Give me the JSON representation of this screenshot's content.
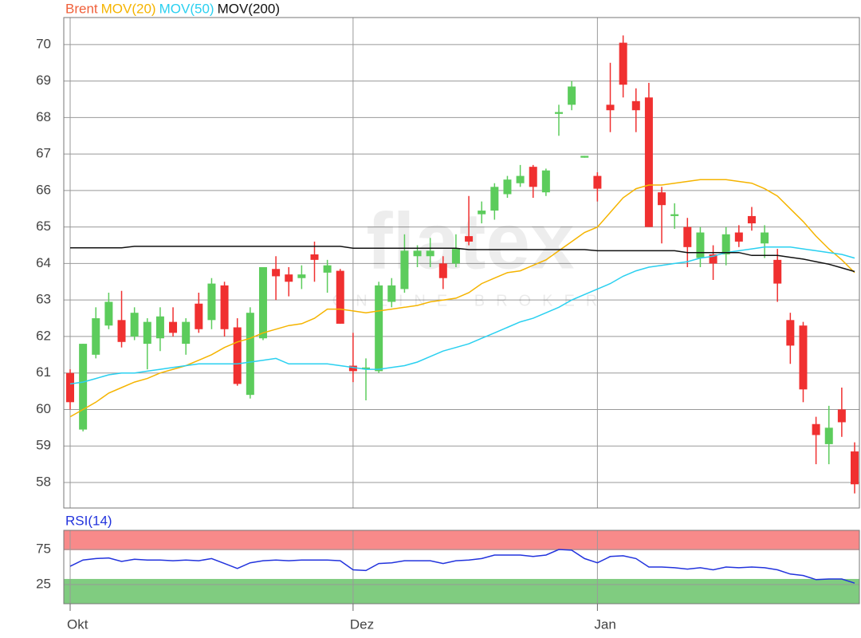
{
  "chart_data": [
    {
      "type": "candlestick",
      "watermark": "flatex",
      "watermark_subtitle": "ONLINE BROKER",
      "categories": [
        "Okt",
        null,
        null,
        null,
        null,
        null,
        null,
        null,
        null,
        null,
        null,
        null,
        null,
        null,
        null,
        null,
        null,
        null,
        null,
        null,
        null,
        null,
        "Dez",
        null,
        null,
        null,
        null,
        null,
        null,
        null,
        null,
        null,
        null,
        null,
        null,
        null,
        null,
        null,
        null,
        null,
        null,
        "Jan",
        null,
        null,
        null,
        null,
        null,
        null,
        null,
        null,
        null,
        null,
        null,
        null,
        null,
        null,
        null,
        null,
        null,
        null,
        null,
        null
      ],
      "ylim": [
        57.3,
        70.74
      ],
      "yticks": [
        58,
        59,
        60,
        61,
        62,
        63,
        64,
        65,
        66,
        67,
        68,
        69,
        70
      ],
      "grid": true,
      "up_color": "#5ccc5c",
      "down_color": "#f03030",
      "series": [
        {
          "name": "Brent",
          "type": "candlestick",
          "color": "#f0603a",
          "open": [
            61.0,
            59.45,
            61.5,
            62.3,
            62.45,
            62.0,
            61.8,
            61.95,
            62.4,
            61.8,
            62.9,
            62.45,
            63.4,
            62.25,
            60.4,
            61.95,
            63.85,
            63.7,
            63.6,
            64.25,
            63.75,
            63.8,
            61.2,
            61.1,
            61.05,
            62.95,
            63.3,
            64.2,
            64.2,
            64.0,
            64.0,
            64.75,
            65.35,
            65.45,
            65.9,
            66.2,
            66.65,
            65.95,
            68.1,
            68.35,
            66.9,
            66.4,
            68.35,
            70.05,
            68.45,
            68.55,
            65.95,
            65.3,
            65.0,
            64.15,
            64.25,
            64.25,
            64.85,
            65.3,
            64.55,
            64.1,
            62.45,
            62.3,
            59.6,
            59.05,
            60.0,
            58.85
          ],
          "high": [
            61.1,
            61.8,
            62.8,
            63.2,
            63.25,
            62.8,
            62.5,
            62.8,
            62.8,
            62.5,
            63.2,
            63.6,
            63.5,
            62.5,
            62.8,
            63.9,
            64.2,
            63.9,
            63.95,
            64.6,
            64.1,
            63.85,
            62.1,
            61.4,
            63.5,
            63.6,
            64.8,
            64.5,
            64.7,
            64.2,
            64.8,
            65.85,
            65.7,
            66.2,
            66.4,
            66.7,
            66.7,
            66.6,
            68.35,
            69.0,
            66.95,
            66.5,
            69.5,
            70.25,
            68.8,
            68.95,
            66.1,
            65.65,
            65.25,
            65.0,
            64.5,
            65.0,
            65.05,
            65.55,
            65.05,
            64.4,
            62.65,
            62.4,
            59.8,
            60.1,
            60.6,
            59.1
          ],
          "low": [
            60.0,
            59.4,
            61.4,
            62.2,
            61.7,
            61.9,
            61.1,
            61.6,
            62.0,
            61.5,
            62.1,
            62.2,
            62.0,
            60.65,
            60.3,
            61.9,
            63.0,
            63.1,
            63.3,
            63.5,
            63.2,
            62.35,
            60.75,
            60.25,
            61.0,
            62.8,
            63.2,
            63.9,
            63.9,
            63.3,
            63.9,
            64.5,
            65.1,
            65.2,
            65.8,
            66.1,
            65.8,
            65.85,
            67.5,
            68.2,
            66.9,
            65.7,
            67.6,
            68.55,
            67.6,
            65.0,
            64.55,
            64.95,
            63.9,
            63.9,
            63.55,
            63.95,
            64.45,
            64.9,
            64.15,
            62.95,
            61.25,
            60.2,
            58.5,
            58.5,
            59.25,
            57.7
          ],
          "close": [
            60.2,
            61.8,
            62.5,
            62.95,
            61.85,
            62.65,
            62.4,
            62.55,
            62.1,
            62.4,
            62.2,
            63.45,
            62.2,
            60.7,
            62.65,
            63.9,
            63.65,
            63.5,
            63.7,
            64.1,
            63.95,
            62.35,
            61.05,
            61.15,
            63.4,
            63.4,
            64.35,
            64.35,
            64.35,
            63.6,
            64.4,
            64.6,
            65.45,
            66.1,
            66.3,
            66.4,
            66.1,
            66.55,
            68.15,
            68.85,
            66.95,
            66.05,
            68.2,
            68.9,
            68.2,
            65.0,
            65.6,
            65.35,
            64.45,
            64.85,
            64.0,
            64.8,
            64.6,
            65.1,
            64.85,
            63.45,
            61.75,
            60.55,
            59.3,
            59.5,
            59.65,
            57.95
          ]
        },
        {
          "name": "MOV(20)",
          "type": "line",
          "color": "#f5b400",
          "values": [
            59.8,
            60.0,
            60.2,
            60.45,
            60.6,
            60.75,
            60.85,
            61.0,
            61.1,
            61.2,
            61.35,
            61.5,
            61.7,
            61.85,
            61.95,
            62.1,
            62.2,
            62.3,
            62.35,
            62.5,
            62.75,
            62.75,
            62.7,
            62.65,
            62.7,
            62.75,
            62.8,
            62.85,
            62.95,
            63.0,
            63.05,
            63.2,
            63.45,
            63.6,
            63.75,
            63.8,
            63.95,
            64.1,
            64.35,
            64.6,
            64.85,
            65.0,
            65.4,
            65.8,
            66.05,
            66.15,
            66.15,
            66.2,
            66.25,
            66.3,
            66.3,
            66.3,
            66.25,
            66.2,
            66.05,
            65.85,
            65.5,
            65.15,
            64.75,
            64.4,
            64.1,
            63.75
          ]
        },
        {
          "name": "MOV(50)",
          "type": "line",
          "color": "#2ad0f0",
          "values": [
            60.7,
            60.75,
            60.85,
            60.95,
            61.0,
            61.0,
            61.05,
            61.1,
            61.15,
            61.2,
            61.25,
            61.25,
            61.25,
            61.25,
            61.3,
            61.35,
            61.4,
            61.25,
            61.25,
            61.25,
            61.25,
            61.2,
            61.15,
            61.1,
            61.1,
            61.15,
            61.2,
            61.3,
            61.45,
            61.6,
            61.7,
            61.8,
            61.95,
            62.1,
            62.25,
            62.4,
            62.5,
            62.65,
            62.8,
            63.0,
            63.15,
            63.3,
            63.45,
            63.65,
            63.8,
            63.9,
            63.95,
            64.0,
            64.05,
            64.15,
            64.2,
            64.3,
            64.35,
            64.4,
            64.45,
            64.45,
            64.45,
            64.4,
            64.35,
            64.3,
            64.25,
            64.15
          ]
        },
        {
          "name": "MOV(200)",
          "type": "line",
          "color": "#111111",
          "values": [
            64.43,
            64.43,
            64.43,
            64.43,
            64.43,
            64.47,
            64.47,
            64.47,
            64.47,
            64.47,
            64.47,
            64.47,
            64.47,
            64.47,
            64.47,
            64.47,
            64.47,
            64.47,
            64.47,
            64.47,
            64.47,
            64.47,
            64.42,
            64.42,
            64.42,
            64.42,
            64.42,
            64.42,
            64.42,
            64.42,
            64.42,
            64.38,
            64.38,
            64.38,
            64.38,
            64.38,
            64.38,
            64.38,
            64.38,
            64.38,
            64.38,
            64.35,
            64.35,
            64.35,
            64.35,
            64.35,
            64.35,
            64.35,
            64.3,
            64.3,
            64.3,
            64.3,
            64.3,
            64.22,
            64.22,
            64.22,
            64.17,
            64.12,
            64.05,
            63.98,
            63.88,
            63.78
          ]
        }
      ]
    },
    {
      "type": "line",
      "title": "RSI(14)",
      "ylim": [
        -2.3,
        102.3
      ],
      "yticks": [
        25,
        75
      ],
      "grid": true,
      "bands": [
        {
          "from": 74,
          "to": 102.3,
          "color": "#f88a8a"
        },
        {
          "from": -2.3,
          "to": 33,
          "color": "#80cc80"
        }
      ],
      "series": [
        {
          "name": "RSI(14)",
          "color": "#2233dd",
          "values": [
            51,
            60,
            62,
            63,
            58,
            61,
            60,
            60,
            59,
            60,
            59,
            62,
            55,
            48,
            56,
            59,
            60,
            59,
            60,
            60,
            60,
            59,
            46,
            45,
            55,
            56,
            59,
            59,
            59,
            55,
            59,
            60,
            62,
            67,
            67,
            67,
            65,
            67,
            75,
            74,
            62,
            56,
            65,
            66,
            62,
            50,
            50,
            49,
            47,
            49,
            46,
            50,
            49,
            50,
            49,
            46,
            40,
            38,
            32,
            33,
            33,
            27
          ]
        }
      ]
    }
  ]
}
